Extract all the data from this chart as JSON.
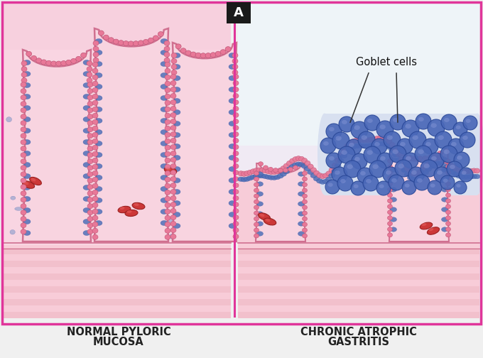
{
  "bg_color": "#f0f0f0",
  "outer_border_color": "#e0359a",
  "panel_left_bg": "#f5c8d4",
  "panel_right_bg": "#f0e8ee",
  "panel_right_top_bg": "#e8f0f8",
  "stroma_pink": "#f8dce6",
  "villus_fill": "#f8d0dc",
  "villus_border": "#e07898",
  "epi_cell_color": "#e888a8",
  "epi_nucleus": "#6080c8",
  "stroma_nucleus": "#7090c8",
  "goblet_blue": "#4a68b8",
  "goblet_border": "#2a4898",
  "goblet_highlight": "#8898d8",
  "rbc_fill": "#cc3838",
  "rbc_border": "#992020",
  "label_color": "#222222",
  "divider_color": "#e0359a",
  "label_A_bg": "#1a1a1a",
  "label_left_1": "NORMAL PYLORIC",
  "label_left_2": "MUCOSA",
  "label_right_1": "CHRONIC ATROPHIC",
  "label_right_2": "GASTRITIS",
  "goblet_annotation": "Goblet cells",
  "figsize": [
    6.8,
    5.04
  ],
  "dpi": 100
}
